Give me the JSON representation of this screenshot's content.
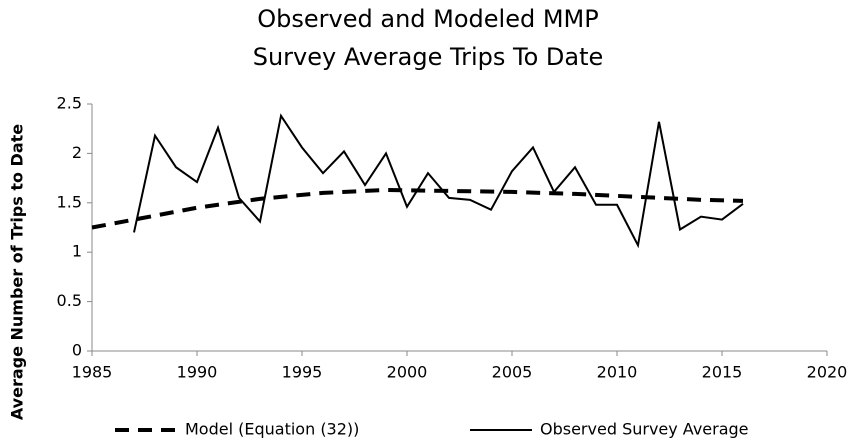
{
  "chart_data": {
    "type": "line",
    "title": [
      "Observed and Modeled MMP",
      "Survey Average Trips To Date"
    ],
    "y_label": "Average Number of Trips to Date",
    "xlim": [
      1985,
      2020
    ],
    "xticks": [
      1985,
      1990,
      1995,
      2000,
      2005,
      2010,
      2015,
      2020
    ],
    "ylim": [
      0,
      2.5
    ],
    "yticks": [
      0,
      0.5,
      1,
      1.5,
      2,
      2.5
    ],
    "legend": "bottom",
    "series": [
      {
        "name": "Model (Equation (32))",
        "color": "#000000",
        "dash": true,
        "x": [
          1985,
          1987,
          1990,
          1993,
          1996,
          1999,
          2002,
          2005,
          2008,
          2011,
          2014,
          2016
        ],
        "values": [
          1.25,
          1.33,
          1.45,
          1.54,
          1.6,
          1.63,
          1.62,
          1.61,
          1.59,
          1.56,
          1.53,
          1.52
        ]
      },
      {
        "name": "Observed Survey Average",
        "color": "#000000",
        "dash": false,
        "x": [
          1987,
          1988,
          1989,
          1990,
          1991,
          1992,
          1993,
          1994,
          1995,
          1996,
          1997,
          1998,
          1999,
          2000,
          2001,
          2002,
          2003,
          2004,
          2005,
          2006,
          2007,
          2008,
          2009,
          2010,
          2011,
          2012,
          2013,
          2014,
          2015,
          2016
        ],
        "values": [
          1.2,
          2.18,
          1.86,
          1.71,
          2.26,
          1.55,
          1.31,
          2.38,
          2.06,
          1.8,
          2.02,
          1.68,
          2.0,
          1.46,
          1.8,
          1.55,
          1.53,
          1.43,
          1.82,
          2.06,
          1.61,
          1.86,
          1.48,
          1.48,
          1.07,
          2.32,
          1.23,
          1.36,
          1.33,
          1.49
        ]
      }
    ]
  }
}
